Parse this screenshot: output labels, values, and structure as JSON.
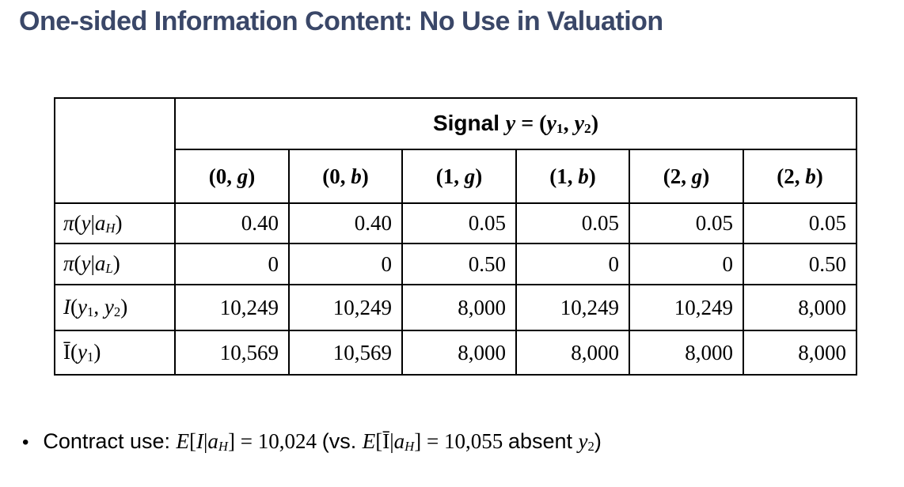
{
  "title": "One-sided Information Content: No Use in Valuation",
  "colors": {
    "background": "#ffffff",
    "title_text": "#3a4768",
    "table_border": "#000000",
    "body_text": "#000000"
  },
  "table": {
    "signal_header": [
      [
        "Signal ",
        "sb"
      ],
      [
        "y",
        "mbi"
      ],
      [
        " = (",
        "mb"
      ],
      [
        "y",
        "mbi"
      ],
      [
        "1",
        "bsub"
      ],
      [
        ", ",
        "mb"
      ],
      [
        "y",
        "mbi"
      ],
      [
        "2",
        "bsub"
      ],
      [
        ")",
        "mb"
      ]
    ],
    "column_headers": [
      [
        [
          "(0, ",
          "mb"
        ],
        [
          "g",
          "mbi"
        ],
        [
          ")",
          "mb"
        ]
      ],
      [
        [
          "(0, ",
          "mb"
        ],
        [
          "b",
          "mbi"
        ],
        [
          ")",
          "mb"
        ]
      ],
      [
        [
          "(1, ",
          "mb"
        ],
        [
          "g",
          "mbi"
        ],
        [
          ")",
          "mb"
        ]
      ],
      [
        [
          "(1, ",
          "mb"
        ],
        [
          "b",
          "mbi"
        ],
        [
          ")",
          "mb"
        ]
      ],
      [
        [
          "(2, ",
          "mb"
        ],
        [
          "g",
          "mbi"
        ],
        [
          ")",
          "mb"
        ]
      ],
      [
        [
          "(2, ",
          "mb"
        ],
        [
          "b",
          "mbi"
        ],
        [
          ")",
          "mb"
        ]
      ]
    ],
    "rows": [
      {
        "label": [
          [
            "π",
            "mi"
          ],
          [
            "(",
            "m"
          ],
          [
            "y",
            "mi"
          ],
          [
            "|",
            "m"
          ],
          [
            "a",
            "mi"
          ],
          [
            "H",
            "subi"
          ],
          [
            ")",
            "m"
          ]
        ],
        "values": [
          "0.40",
          "0.40",
          "0.05",
          "0.05",
          "0.05",
          "0.05"
        ]
      },
      {
        "label": [
          [
            "π",
            "mi"
          ],
          [
            "(",
            "m"
          ],
          [
            "y",
            "mi"
          ],
          [
            "|",
            "m"
          ],
          [
            "a",
            "mi"
          ],
          [
            "L",
            "subi"
          ],
          [
            ")",
            "m"
          ]
        ],
        "values": [
          "0",
          "0",
          "0.50",
          "0",
          "0",
          "0.50"
        ]
      },
      {
        "label": [
          [
            "I",
            "mi"
          ],
          [
            "(",
            "m"
          ],
          [
            "y",
            "mi"
          ],
          [
            "1",
            "sub"
          ],
          [
            ", ",
            "m"
          ],
          [
            "y",
            "mi"
          ],
          [
            "2",
            "sub"
          ],
          [
            ")",
            "m"
          ]
        ],
        "values": [
          "10,249",
          "10,249",
          "8,000",
          "10,249",
          "10,249",
          "8,000"
        ]
      },
      {
        "label": [
          [
            "Ī",
            "m"
          ],
          [
            "(",
            "m"
          ],
          [
            "y",
            "mi"
          ],
          [
            "1",
            "sub"
          ],
          [
            ")",
            "m"
          ]
        ],
        "values": [
          "10,569",
          "10,569",
          "8,000",
          "8,000",
          "8,000",
          "8,000"
        ]
      }
    ]
  },
  "bullet": {
    "marker": "•",
    "segments": [
      [
        "Contract use: ",
        "s"
      ],
      [
        "E",
        "mi"
      ],
      [
        "[",
        "m"
      ],
      [
        "I",
        "mi"
      ],
      [
        "|",
        "m"
      ],
      [
        "a",
        "mi"
      ],
      [
        "H",
        "subi"
      ],
      [
        "]",
        "m"
      ],
      [
        " = 10,024 ",
        "m"
      ],
      [
        "(vs. ",
        "s"
      ],
      [
        "E",
        "mi"
      ],
      [
        "[",
        "m"
      ],
      [
        "Ī",
        "m"
      ],
      [
        "|",
        "m"
      ],
      [
        "a",
        "mi"
      ],
      [
        "H",
        "subi"
      ],
      [
        "]",
        "m"
      ],
      [
        " = 10,055 ",
        "m"
      ],
      [
        "absent ",
        "s"
      ],
      [
        "y",
        "mi"
      ],
      [
        "2",
        "sub"
      ],
      [
        ")",
        "s"
      ]
    ]
  }
}
